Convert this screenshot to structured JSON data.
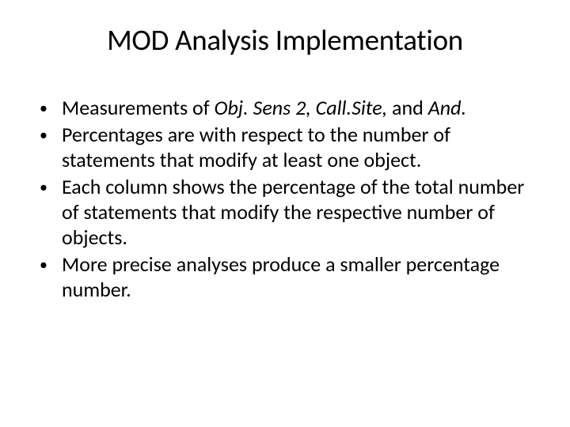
{
  "slide": {
    "title": "MOD Analysis Implementation",
    "title_fontsize": 37,
    "body_fontsize": 26,
    "background_color": "#ffffff",
    "text_color": "#000000",
    "bullets": [
      {
        "prefix": "Measurements of ",
        "italic1": "Obj. Sens 2, Call.Site,",
        "mid": " and ",
        "italic2": "And."
      },
      {
        "text": "Percentages are with respect to the number of statements that modify at least one object."
      },
      {
        "text": "Each column shows the percentage of the total number of statements that modify the respective number of objects."
      },
      {
        "text": "More precise analyses produce a smaller percentage number."
      }
    ],
    "bullet_marker": "•"
  }
}
